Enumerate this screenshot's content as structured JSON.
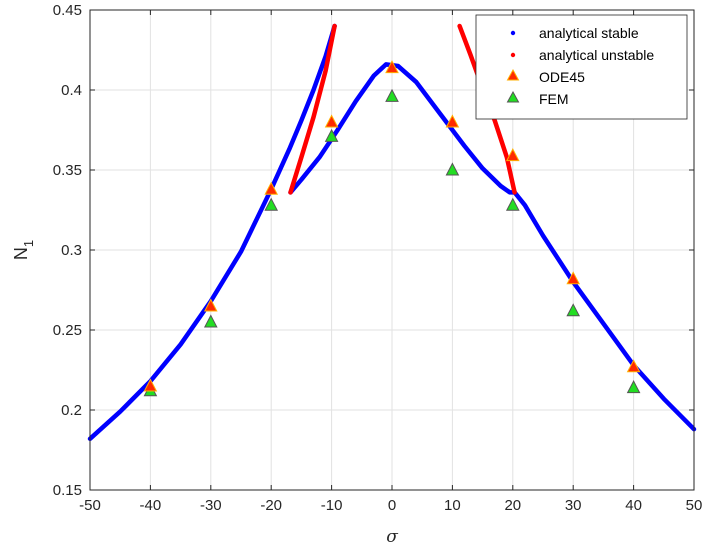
{
  "chart_data": {
    "type": "scatter",
    "xlabel": "σ",
    "ylabel": "N",
    "ylabel_subscript": "1",
    "xlim": [
      -50,
      50
    ],
    "ylim": [
      0.15,
      0.45
    ],
    "xticks": [
      "-50",
      "-40",
      "-30",
      "-20",
      "-10",
      "0",
      "10",
      "20",
      "30",
      "40",
      "50"
    ],
    "yticks": [
      "0.15",
      "0.2",
      "0.25",
      "0.3",
      "0.35",
      "0.4",
      "0.45"
    ],
    "grid": true,
    "legend_position": "top-right",
    "colors": {
      "stable": "#0000ff",
      "unstable": "#ff0000",
      "ode45_fill": "#ff2a00",
      "ode45_edge": "#ffb000",
      "fem_fill": "#22dd22",
      "fem_edge": "#555555",
      "grid": "#e2e2e2"
    },
    "series": [
      {
        "name": "analytical stable",
        "style": "line",
        "segments": [
          {
            "x": [
              -50,
              -45,
              -40,
              -35,
              -30,
              -25,
              -20,
              -17,
              -15,
              -13,
              -11,
              -9.5
            ],
            "y": [
              0.182,
              0.199,
              0.218,
              0.241,
              0.268,
              0.299,
              0.338,
              0.363,
              0.381,
              0.4,
              0.421,
              0.44
            ]
          },
          {
            "x": [
              -16.8,
              -15,
              -12,
              -9,
              -6,
              -3,
              -1,
              1,
              4,
              8,
              12,
              15,
              18,
              19.5,
              20.3
            ],
            "y": [
              0.336,
              0.344,
              0.358,
              0.375,
              0.393,
              0.409,
              0.416,
              0.415,
              0.405,
              0.385,
              0.365,
              0.351,
              0.34,
              0.336,
              0.336
            ]
          },
          {
            "x": [
              20.3,
              22,
              25,
              30,
              35,
              40,
              45,
              50
            ],
            "y": [
              0.336,
              0.328,
              0.309,
              0.28,
              0.254,
              0.228,
              0.207,
              0.188
            ]
          }
        ]
      },
      {
        "name": "analytical unstable",
        "style": "line",
        "segments": [
          {
            "x": [
              -16.8,
              -15,
              -13,
              -11,
              -9.5
            ],
            "y": [
              0.336,
              0.358,
              0.383,
              0.412,
              0.44
            ]
          },
          {
            "x": [
              11.2,
              13,
              15,
              17,
              19,
              20.3
            ],
            "y": [
              0.44,
              0.422,
              0.401,
              0.381,
              0.358,
              0.336
            ]
          }
        ]
      },
      {
        "name": "ODE45",
        "style": "triangle",
        "x": [
          -40,
          -30,
          -20,
          -10,
          0,
          10,
          20,
          30,
          40
        ],
        "y": [
          0.215,
          0.265,
          0.338,
          0.38,
          0.414,
          0.38,
          0.359,
          0.282,
          0.227
        ]
      },
      {
        "name": "FEM",
        "style": "triangle",
        "x": [
          -40,
          -30,
          -20,
          -10,
          0,
          10,
          20,
          30,
          40
        ],
        "y": [
          0.212,
          0.255,
          0.328,
          0.371,
          0.396,
          0.35,
          0.328,
          0.262,
          0.214
        ]
      }
    ]
  }
}
